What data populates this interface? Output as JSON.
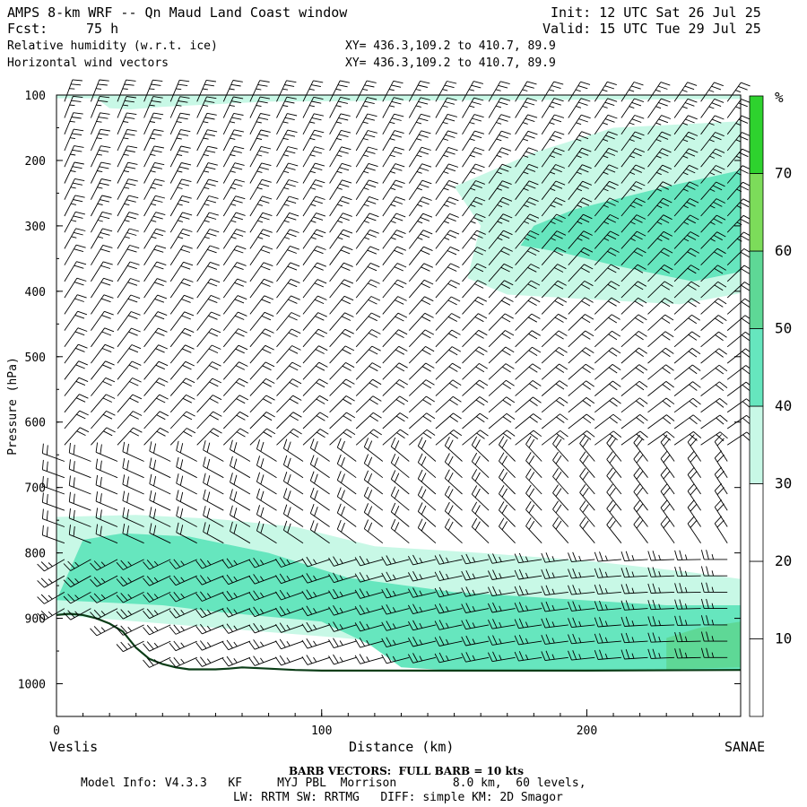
{
  "header": {
    "title": "AMPS 8-km WRF -- Qn Maud Land Coast window",
    "fcst_label": "Fcst:",
    "fcst_value": "75 h",
    "init": "Init: 12 UTC Sat 26 Jul 25",
    "valid": "Valid: 15 UTC Tue 29 Jul 25",
    "field1": "Relative humidity (w.r.t. ice)",
    "field2": "Horizontal wind vectors",
    "xy1": "XY= 436.3,109.2 to 410.7, 89.9",
    "xy2": "XY= 436.3,109.2 to 410.7, 89.9"
  },
  "footer": {
    "left_end": "Veslis",
    "right_end": "SANAE",
    "barb_note": "BARB VECTORS:  FULL BARB = 10 kts",
    "model_info": "Model Info: V4.3.3   KF     MYJ PBL  Morrison        8.0 km,  60 levels,",
    "model_info2": "LW: RRTM SW: RRTMG   DIFF: simple KM: 2D Smagor"
  },
  "colors": {
    "rh_30_40": "#c8f8e6",
    "rh_40_50": "#66e6be",
    "rh_50_60": "#5ed896",
    "rh_60_70": "#7cdc5a",
    "rh_70_plus": "#2ed22e",
    "terrain_line": "#0b3d17"
  },
  "chart_data": {
    "type": "heatmap",
    "xlabel": "Distance (km)",
    "ylabel": "Pressure (hPa)",
    "xlim": [
      0,
      258
    ],
    "ylim": [
      1050,
      100
    ],
    "x_ticks": [
      0,
      100,
      200
    ],
    "y_ticks": [
      100,
      200,
      300,
      400,
      500,
      600,
      700,
      800,
      900,
      1000
    ],
    "colorbar": {
      "unit": "%",
      "levels": [
        10,
        20,
        30,
        40,
        50,
        60,
        70
      ],
      "fills": [
        {
          "from": 0,
          "to": 30,
          "color": "#ffffff"
        },
        {
          "from": 30,
          "to": 40,
          "color": "#c8f8e6"
        },
        {
          "from": 40,
          "to": 50,
          "color": "#66e6be"
        },
        {
          "from": 50,
          "to": 60,
          "color": "#5ed896"
        },
        {
          "from": 60,
          "to": 70,
          "color": "#7cdc5a"
        },
        {
          "from": 70,
          "to": 80,
          "color": "#2ed22e"
        }
      ]
    },
    "terrain_surface": {
      "x": [
        0,
        5,
        10,
        15,
        20,
        25,
        30,
        35,
        40,
        45,
        50,
        55,
        60,
        65,
        70,
        80,
        90,
        100,
        120,
        150,
        200,
        258
      ],
      "p": [
        895,
        893,
        895,
        900,
        908,
        920,
        945,
        962,
        970,
        975,
        978,
        978,
        978,
        977,
        975,
        977,
        979,
        980,
        980,
        980,
        980,
        979
      ]
    },
    "rh_regions": [
      {
        "level": 30,
        "points": [
          [
            0,
            105
          ],
          [
            15,
            105
          ],
          [
            20,
            120
          ],
          [
            28,
            122
          ],
          [
            40,
            118
          ],
          [
            80,
            110
          ],
          [
            150,
            108
          ],
          [
            258,
            106
          ],
          [
            258,
            100
          ],
          [
            0,
            100
          ]
        ]
      },
      {
        "level": 30,
        "points": [
          [
            150,
            240
          ],
          [
            180,
            188
          ],
          [
            210,
            150
          ],
          [
            258,
            140
          ],
          [
            258,
            403
          ],
          [
            235,
            420
          ],
          [
            200,
            412
          ],
          [
            170,
            405
          ],
          [
            155,
            380
          ],
          [
            158,
            330
          ],
          [
            160,
            300
          ]
        ]
      },
      {
        "level": 40,
        "points": [
          [
            180,
            300
          ],
          [
            195,
            275
          ],
          [
            230,
            240
          ],
          [
            258,
            215
          ],
          [
            258,
            370
          ],
          [
            240,
            385
          ],
          [
            210,
            360
          ],
          [
            190,
            340
          ],
          [
            175,
            330
          ]
        ]
      },
      {
        "level": 30,
        "points": [
          [
            0,
            745
          ],
          [
            30,
            742
          ],
          [
            60,
            748
          ],
          [
            90,
            760
          ],
          [
            120,
            790
          ],
          [
            160,
            800
          ],
          [
            200,
            812
          ],
          [
            240,
            830
          ],
          [
            258,
            840
          ],
          [
            258,
            979
          ],
          [
            0,
            895
          ]
        ]
      },
      {
        "level": 40,
        "points": [
          [
            10,
            780
          ],
          [
            25,
            770
          ],
          [
            50,
            775
          ],
          [
            80,
            800
          ],
          [
            110,
            838
          ],
          [
            150,
            860
          ],
          [
            190,
            870
          ],
          [
            230,
            880
          ],
          [
            258,
            880
          ],
          [
            258,
            979
          ],
          [
            150,
            980
          ],
          [
            130,
            975
          ],
          [
            118,
            940
          ],
          [
            100,
            905
          ],
          [
            60,
            890
          ],
          [
            40,
            880
          ],
          [
            0,
            872
          ]
        ]
      },
      {
        "level": 50,
        "points": [
          [
            230,
            930
          ],
          [
            242,
            915
          ],
          [
            258,
            905
          ],
          [
            258,
            975
          ],
          [
            230,
            978
          ]
        ]
      }
    ]
  }
}
